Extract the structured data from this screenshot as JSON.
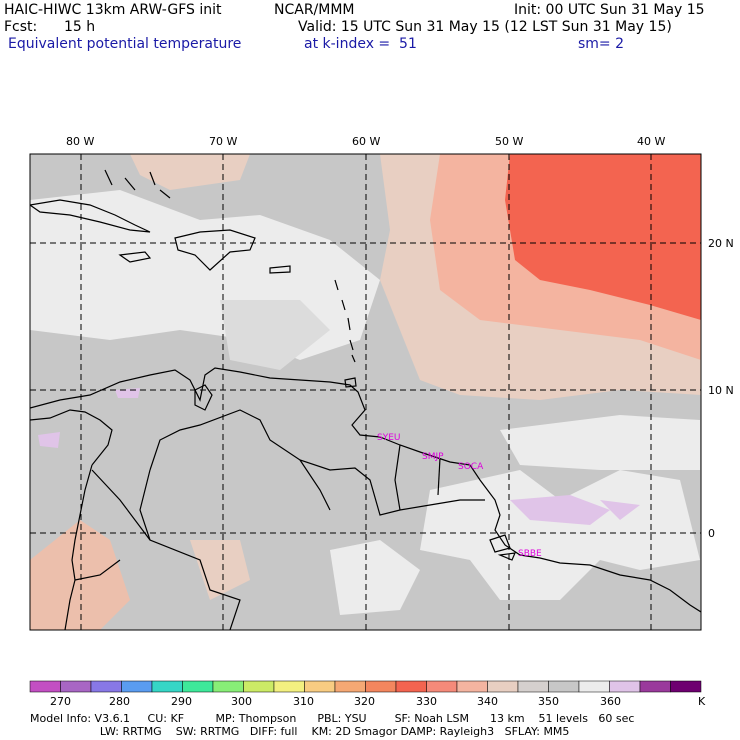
{
  "header": {
    "model": "HAIC-HIWC 13km ARW-GFS init",
    "org": "NCAR/MMM",
    "init": "Init: 00 UTC Sun 31 May 15",
    "fcst_label": "Fcst:",
    "fcst_value": "15 h",
    "valid": "Valid: 15 UTC Sun 31 May 15 (12 LST Sun 31 May 15)",
    "field": "Equivalent potential temperature",
    "level": "at k-index =  51",
    "smooth": "sm= 2"
  },
  "map": {
    "lon_labels": [
      "80 W",
      "70 W",
      "60 W",
      "50 W",
      "40 W"
    ],
    "lat_labels": [
      "20 N",
      "10 N",
      "0"
    ],
    "stations": [
      "SYEU",
      "SMJP",
      "SOCA",
      "SBBE"
    ],
    "colors": {
      "land_gray": "#c7c7c7",
      "light_gray": "#ececec",
      "tan": "#e8cfc2",
      "salmon": "#f4b4a0",
      "red": "#f36450",
      "lavender": "#e0c4e8",
      "station_color": "#dd00dd"
    }
  },
  "colorbar": {
    "labels": [
      "270",
      "280",
      "290",
      "300",
      "310",
      "320",
      "330",
      "340",
      "350",
      "360"
    ],
    "unit": "K",
    "colors": [
      "#c34fc3",
      "#a866c4",
      "#8878e6",
      "#5a9cf0",
      "#36d6c6",
      "#3ee89a",
      "#88ee77",
      "#cceb66",
      "#f3f080",
      "#f8cc82",
      "#f5a874",
      "#f3865e",
      "#f36450",
      "#f58a7a",
      "#f4b4a0",
      "#e8cfc2",
      "#d5d0ce",
      "#c7c7c7",
      "#ececec",
      "#e0c4e8",
      "#9a3a9c",
      "#6e0070"
    ]
  },
  "model_info": {
    "line1": "Model Info: V3.6.1     CU: KF         MP: Thompson      PBL: YSU        SF: Noah LSM      13 km    51 levels   60 sec",
    "line2": "                    LW: RRTMG    SW: RRTMG   DIFF: full    KM: 2D Smagor DAMP: Rayleigh3   SFLAY: MM5"
  }
}
